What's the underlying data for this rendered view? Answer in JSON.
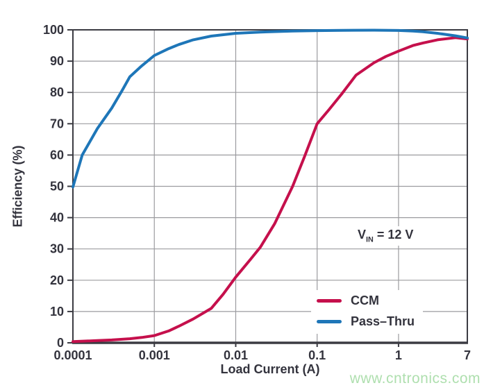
{
  "watermark": "www.cntronics.com",
  "colors": {
    "grid": "#9b9b9f",
    "axis": "#3b3b42",
    "text": "#33333d",
    "ccm": "#c5104c",
    "pass_thru": "#1e76b8",
    "watermark": "#aedfae"
  },
  "chart_data": {
    "type": "line",
    "title": "",
    "xlabel": "Load Current (A)",
    "ylabel": "Efficiency (%)",
    "x_scale": "log",
    "xlim": [
      0.0001,
      7
    ],
    "ylim": [
      0,
      100
    ],
    "grid": true,
    "legend_position": "lower right inside",
    "annotation": {
      "base": "V",
      "sub": "IN",
      "rest": " = 12 V"
    },
    "y_ticks": [
      0,
      10,
      20,
      30,
      40,
      50,
      60,
      70,
      80,
      90,
      100
    ],
    "x_ticks": [
      {
        "value": 0.0001,
        "label": "0.0001",
        "grid": false
      },
      {
        "value": 0.001,
        "label": "0.001",
        "grid": true
      },
      {
        "value": 0.01,
        "label": "0.01",
        "grid": true
      },
      {
        "value": 0.1,
        "label": "0.1",
        "grid": true
      },
      {
        "value": 1,
        "label": "1",
        "grid": true
      },
      {
        "value": 7,
        "label": "7",
        "grid": false
      }
    ],
    "series": [
      {
        "name": "CCM",
        "color": "#c5104c",
        "points": [
          [
            0.0001,
            0.4
          ],
          [
            0.0002,
            0.7
          ],
          [
            0.0003,
            0.9
          ],
          [
            0.0005,
            1.3
          ],
          [
            0.0007,
            1.7
          ],
          [
            0.001,
            2.3
          ],
          [
            0.0015,
            3.8
          ],
          [
            0.002,
            5.3
          ],
          [
            0.003,
            7.6
          ],
          [
            0.005,
            11
          ],
          [
            0.007,
            15.5
          ],
          [
            0.01,
            21
          ],
          [
            0.015,
            26.5
          ],
          [
            0.02,
            30.5
          ],
          [
            0.03,
            38
          ],
          [
            0.05,
            50
          ],
          [
            0.07,
            59.5
          ],
          [
            0.1,
            70
          ],
          [
            0.14,
            74.5
          ],
          [
            0.2,
            79.5
          ],
          [
            0.3,
            85.5
          ],
          [
            0.5,
            89.5
          ],
          [
            0.7,
            91.5
          ],
          [
            1,
            93.2
          ],
          [
            1.5,
            95
          ],
          [
            2,
            95.8
          ],
          [
            3,
            96.8
          ],
          [
            5,
            97.5
          ],
          [
            7,
            97.1
          ]
        ]
      },
      {
        "name": "Pass–Thru",
        "color": "#1e76b8",
        "points": [
          [
            0.0001,
            49.8
          ],
          [
            0.00013,
            60
          ],
          [
            0.0002,
            68.5
          ],
          [
            0.0003,
            75
          ],
          [
            0.0004,
            80.5
          ],
          [
            0.0005,
            85
          ],
          [
            0.0007,
            88.5
          ],
          [
            0.001,
            91.8
          ],
          [
            0.0015,
            94
          ],
          [
            0.002,
            95.3
          ],
          [
            0.003,
            96.8
          ],
          [
            0.005,
            98
          ],
          [
            0.01,
            98.9
          ],
          [
            0.02,
            99.3
          ],
          [
            0.05,
            99.6
          ],
          [
            0.1,
            99.75
          ],
          [
            0.2,
            99.85
          ],
          [
            0.5,
            99.9
          ],
          [
            1,
            99.8
          ],
          [
            1.5,
            99.6
          ],
          [
            2,
            99.4
          ],
          [
            3,
            98.9
          ],
          [
            5,
            98.1
          ],
          [
            7,
            97.4
          ]
        ]
      }
    ]
  }
}
